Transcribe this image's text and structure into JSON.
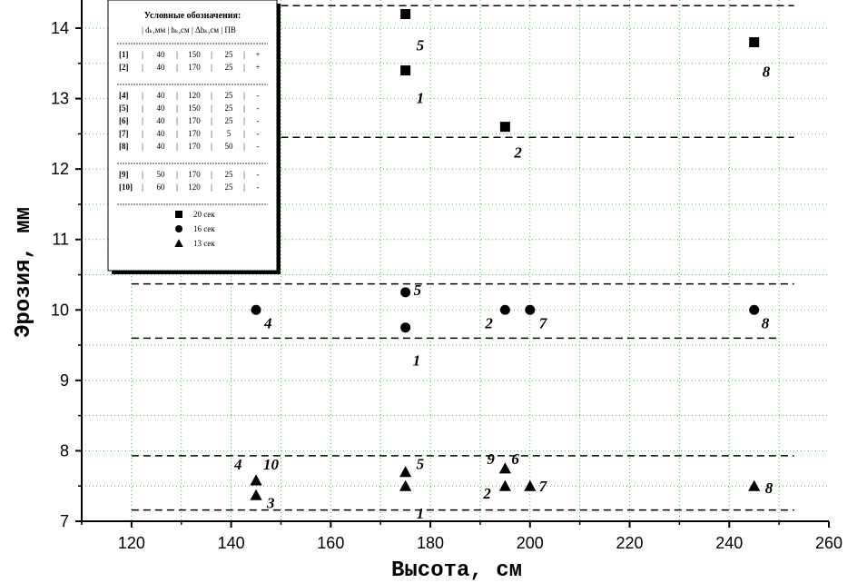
{
  "chart_data": {
    "type": "scatter",
    "xlabel": "Высота, см",
    "ylabel": "Эрозия, мм",
    "xlim": [
      110,
      260
    ],
    "ylim": [
      7,
      14.4
    ],
    "xticks": [
      120,
      140,
      160,
      180,
      200,
      220,
      240,
      260
    ],
    "yticks": [
      7,
      8,
      9,
      10,
      11,
      12,
      13,
      14
    ],
    "grid": true,
    "legend_placement": "top-left",
    "series": [
      {
        "name": "20 сек",
        "marker": "square",
        "points": [
          {
            "x": 175,
            "y": 14.2,
            "label": "5"
          },
          {
            "x": 175,
            "y": 13.4,
            "label": "1"
          },
          {
            "x": 195,
            "y": 12.6,
            "label": "2"
          },
          {
            "x": 245,
            "y": 13.8,
            "label": "8"
          }
        ]
      },
      {
        "name": "16 сек",
        "marker": "circle",
        "points": [
          {
            "x": 145,
            "y": 10.0,
            "label": "4"
          },
          {
            "x": 175,
            "y": 10.25,
            "label": "5"
          },
          {
            "x": 175,
            "y": 9.75,
            "label": "1"
          },
          {
            "x": 195,
            "y": 10.0,
            "label": "2"
          },
          {
            "x": 200,
            "y": 10.0,
            "label": "7"
          },
          {
            "x": 245,
            "y": 10.0,
            "label": "8"
          }
        ]
      },
      {
        "name": "13 сек",
        "marker": "triangle",
        "points": [
          {
            "x": 145,
            "y": 7.58,
            "label": "4"
          },
          {
            "x": 145,
            "y": 7.58,
            "label": "10"
          },
          {
            "x": 145,
            "y": 7.37,
            "label": "3"
          },
          {
            "x": 175,
            "y": 7.7,
            "label": "5"
          },
          {
            "x": 175,
            "y": 7.5,
            "label": "1"
          },
          {
            "x": 195,
            "y": 7.75,
            "label": "9"
          },
          {
            "x": 195,
            "y": 7.75,
            "label": "6"
          },
          {
            "x": 195,
            "y": 7.5,
            "label": "2"
          },
          {
            "x": 200,
            "y": 7.5,
            "label": "7"
          },
          {
            "x": 245,
            "y": 7.5,
            "label": "8"
          }
        ]
      }
    ],
    "band_lines": [
      {
        "y": 14.32,
        "x1": 150,
        "x2": 253
      },
      {
        "y": 12.45,
        "x1": 150,
        "x2": 253
      },
      {
        "y": 10.37,
        "x1": 120,
        "x2": 253
      },
      {
        "y": 9.6,
        "x1": 120,
        "x2": 250
      },
      {
        "y": 7.93,
        "x1": 120,
        "x2": 253
      },
      {
        "y": 7.16,
        "x1": 120,
        "x2": 253
      }
    ],
    "legend": {
      "title": "Условные обозначения:",
      "header": "| dₖ,мм |  hₖ,см  | Δhₖ,см |  ПВ",
      "groups": [
        [
          {
            "id": "[1]",
            "d": "40",
            "h": "150",
            "dh": "25",
            "pv": "+"
          },
          {
            "id": "[2]",
            "d": "40",
            "h": "170",
            "dh": "25",
            "pv": "+"
          }
        ],
        [
          {
            "id": "[4]",
            "d": "40",
            "h": "120",
            "dh": "25",
            "pv": "-"
          },
          {
            "id": "[5]",
            "d": "40",
            "h": "150",
            "dh": "25",
            "pv": "-"
          },
          {
            "id": "[6]",
            "d": "40",
            "h": "170",
            "dh": "25",
            "pv": "-"
          },
          {
            "id": "[7]",
            "d": "40",
            "h": "170",
            "dh": "5",
            "pv": "-"
          },
          {
            "id": "[8]",
            "d": "40",
            "h": "170",
            "dh": "50",
            "pv": "-"
          }
        ],
        [
          {
            "id": "[9]",
            "d": "50",
            "h": "170",
            "dh": "25",
            "pv": "-"
          },
          {
            "id": "[10]",
            "d": "60",
            "h": "120",
            "dh": "25",
            "pv": "-"
          }
        ]
      ],
      "markers": [
        {
          "marker": "square",
          "label": "20 сек"
        },
        {
          "marker": "circle",
          "label": "16 сек"
        },
        {
          "marker": "triangle",
          "label": "13 сек"
        }
      ]
    }
  }
}
